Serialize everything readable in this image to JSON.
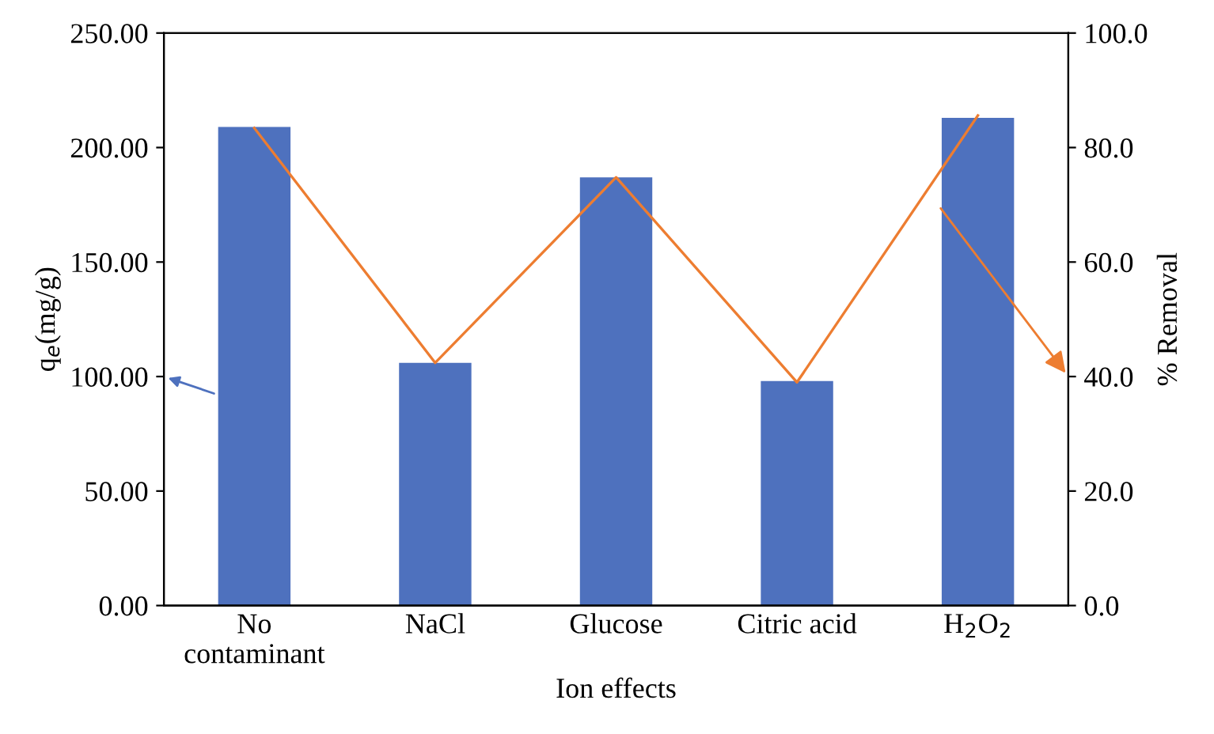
{
  "chart_data": {
    "type": "bar",
    "xlabel": "Ion effects",
    "ylabel": "q$_{e}$(mg/g)",
    "y2label": "% Removal",
    "categories": [
      "No\ncontaminant",
      "NaCl",
      "Glucose",
      "Citric acid",
      "H$_{2}$O$_{2}$"
    ],
    "series": [
      {
        "color": "#4e71be",
        "values": [
          209,
          106,
          187,
          98,
          213
        ]
      },
      {
        "type": "line",
        "axis": "y2",
        "color": "#ed7d31",
        "values": [
          83.4,
          42.4,
          74.8,
          39.0,
          85.6
        ]
      }
    ],
    "ylim": [
      0,
      250
    ],
    "yticks": [
      {
        "value": 0,
        "label": "0.00"
      },
      {
        "value": 50,
        "label": "50.00"
      },
      {
        "value": 100,
        "label": "100.00"
      },
      {
        "value": 150,
        "label": "150.00"
      },
      {
        "value": 200,
        "label": "200.00"
      },
      {
        "value": 250,
        "label": "250.00"
      }
    ],
    "y2lim": [
      0,
      100
    ],
    "y2ticks": [
      {
        "value": 0,
        "label": "0.0"
      },
      {
        "value": 20,
        "label": "20.0"
      },
      {
        "value": 40,
        "label": "40.0"
      },
      {
        "value": 60,
        "label": "60.0"
      },
      {
        "value": 80,
        "label": "80.0"
      },
      {
        "value": 100,
        "label": "100.0"
      }
    ],
    "grid": false,
    "legend": false
  }
}
